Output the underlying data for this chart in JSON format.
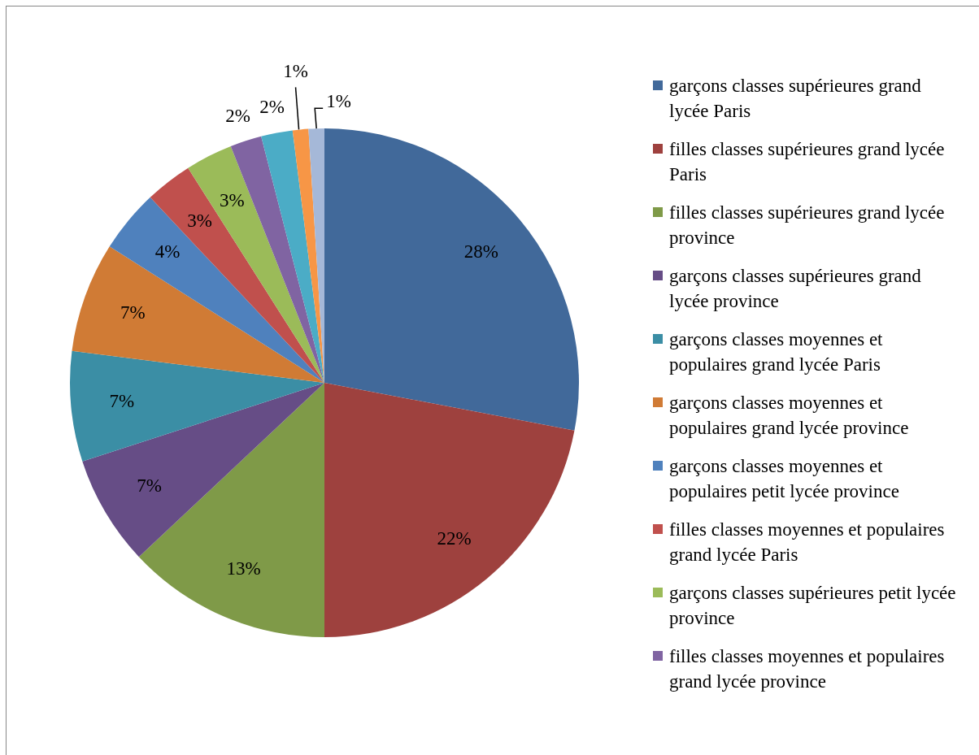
{
  "chart_data": {
    "type": "pie",
    "categories": [
      "garçons classes supérieures grand lycée Paris",
      "filles classes supérieures grand lycée Paris",
      "filles classes supérieures grand lycée province",
      "garçons classes supérieures grand lycée province",
      "garçons classes moyennes et populaires grand lycée Paris",
      "garçons classes moyennes et populaires grand lycée province",
      "garçons classes moyennes et populaires petit lycée province",
      "filles classes moyennes et populaires grand lycée Paris",
      "garçons classes supérieures petit lycée province",
      "filles classes moyennes et populaires grand lycée province",
      null,
      null,
      null
    ],
    "values": [
      28,
      22,
      13,
      7,
      7,
      7,
      4,
      3,
      3,
      2,
      2,
      1,
      1
    ],
    "colors": [
      "#41699a",
      "#9e413e",
      "#7f9a48",
      "#664d86",
      "#3b8ea5",
      "#d07b35",
      "#4f81bd",
      "#c0504d",
      "#9bbb59",
      "#8064a2",
      "#4bacc6",
      "#f79646",
      "#a5b8d8"
    ],
    "value_labels": [
      "28%",
      "22%",
      "13%",
      "7%",
      "7%",
      "7%",
      "4%",
      "3%",
      "3%",
      "2%",
      "2%",
      "1%",
      "1%"
    ],
    "legend": "right"
  }
}
